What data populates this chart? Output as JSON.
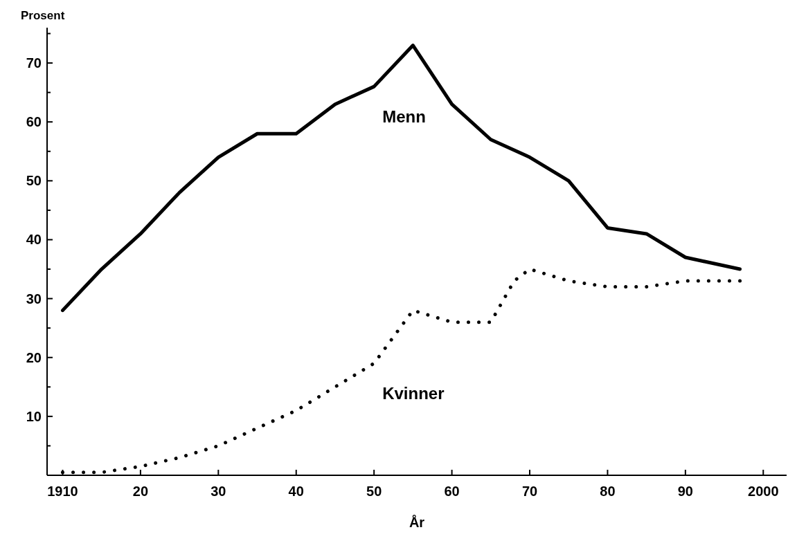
{
  "chart_data": {
    "type": "line",
    "ylabel": "Prosent",
    "xlabel": "År",
    "xlim": [
      1908,
      2003
    ],
    "xticks": [
      1910,
      {
        "value": 1920,
        "label": "20"
      },
      {
        "value": 1930,
        "label": "30"
      },
      {
        "value": 1940,
        "label": "40"
      },
      {
        "value": 1950,
        "label": "50"
      },
      {
        "value": 1960,
        "label": "60"
      },
      {
        "value": 1970,
        "label": "70"
      },
      {
        "value": 1980,
        "label": "80"
      },
      {
        "value": 1990,
        "label": "90"
      },
      2000
    ],
    "ylim": [
      0,
      76
    ],
    "yticks": [
      {
        "value": 5,
        "label": null
      },
      10,
      {
        "value": 15,
        "label": null
      },
      20,
      {
        "value": 25,
        "label": null
      },
      30,
      {
        "value": 35,
        "label": null
      },
      40,
      {
        "value": 45,
        "label": null
      },
      50,
      {
        "value": 55,
        "label": null
      },
      60,
      {
        "value": 65,
        "label": null
      },
      70,
      {
        "value": 75,
        "label": null
      }
    ],
    "grid": false,
    "marker": "none",
    "series": [
      {
        "name": "Menn",
        "color": "#000000",
        "line_style": "solid",
        "x": [
          1910,
          1915,
          1920,
          1925,
          1930,
          1935,
          1940,
          1945,
          1950,
          1955,
          1960,
          1965,
          1970,
          1975,
          1980,
          1985,
          1990,
          1997
        ],
        "values": [
          28,
          35,
          41,
          48,
          54,
          58,
          58,
          63,
          66,
          73,
          63,
          57,
          54,
          50,
          42,
          41,
          37,
          35
        ]
      },
      {
        "name": "Kvinner",
        "color": "#000000",
        "line_style": "dotted",
        "x": [
          1910,
          1915,
          1920,
          1925,
          1930,
          1935,
          1940,
          1945,
          1950,
          1955,
          1960,
          1965,
          1968,
          1970,
          1975,
          1980,
          1985,
          1990,
          1997
        ],
        "values": [
          0.5,
          0.5,
          1.5,
          3,
          5,
          8,
          11,
          15,
          19,
          28,
          26,
          26,
          33,
          35,
          33,
          32,
          32,
          33,
          33
        ]
      }
    ]
  }
}
